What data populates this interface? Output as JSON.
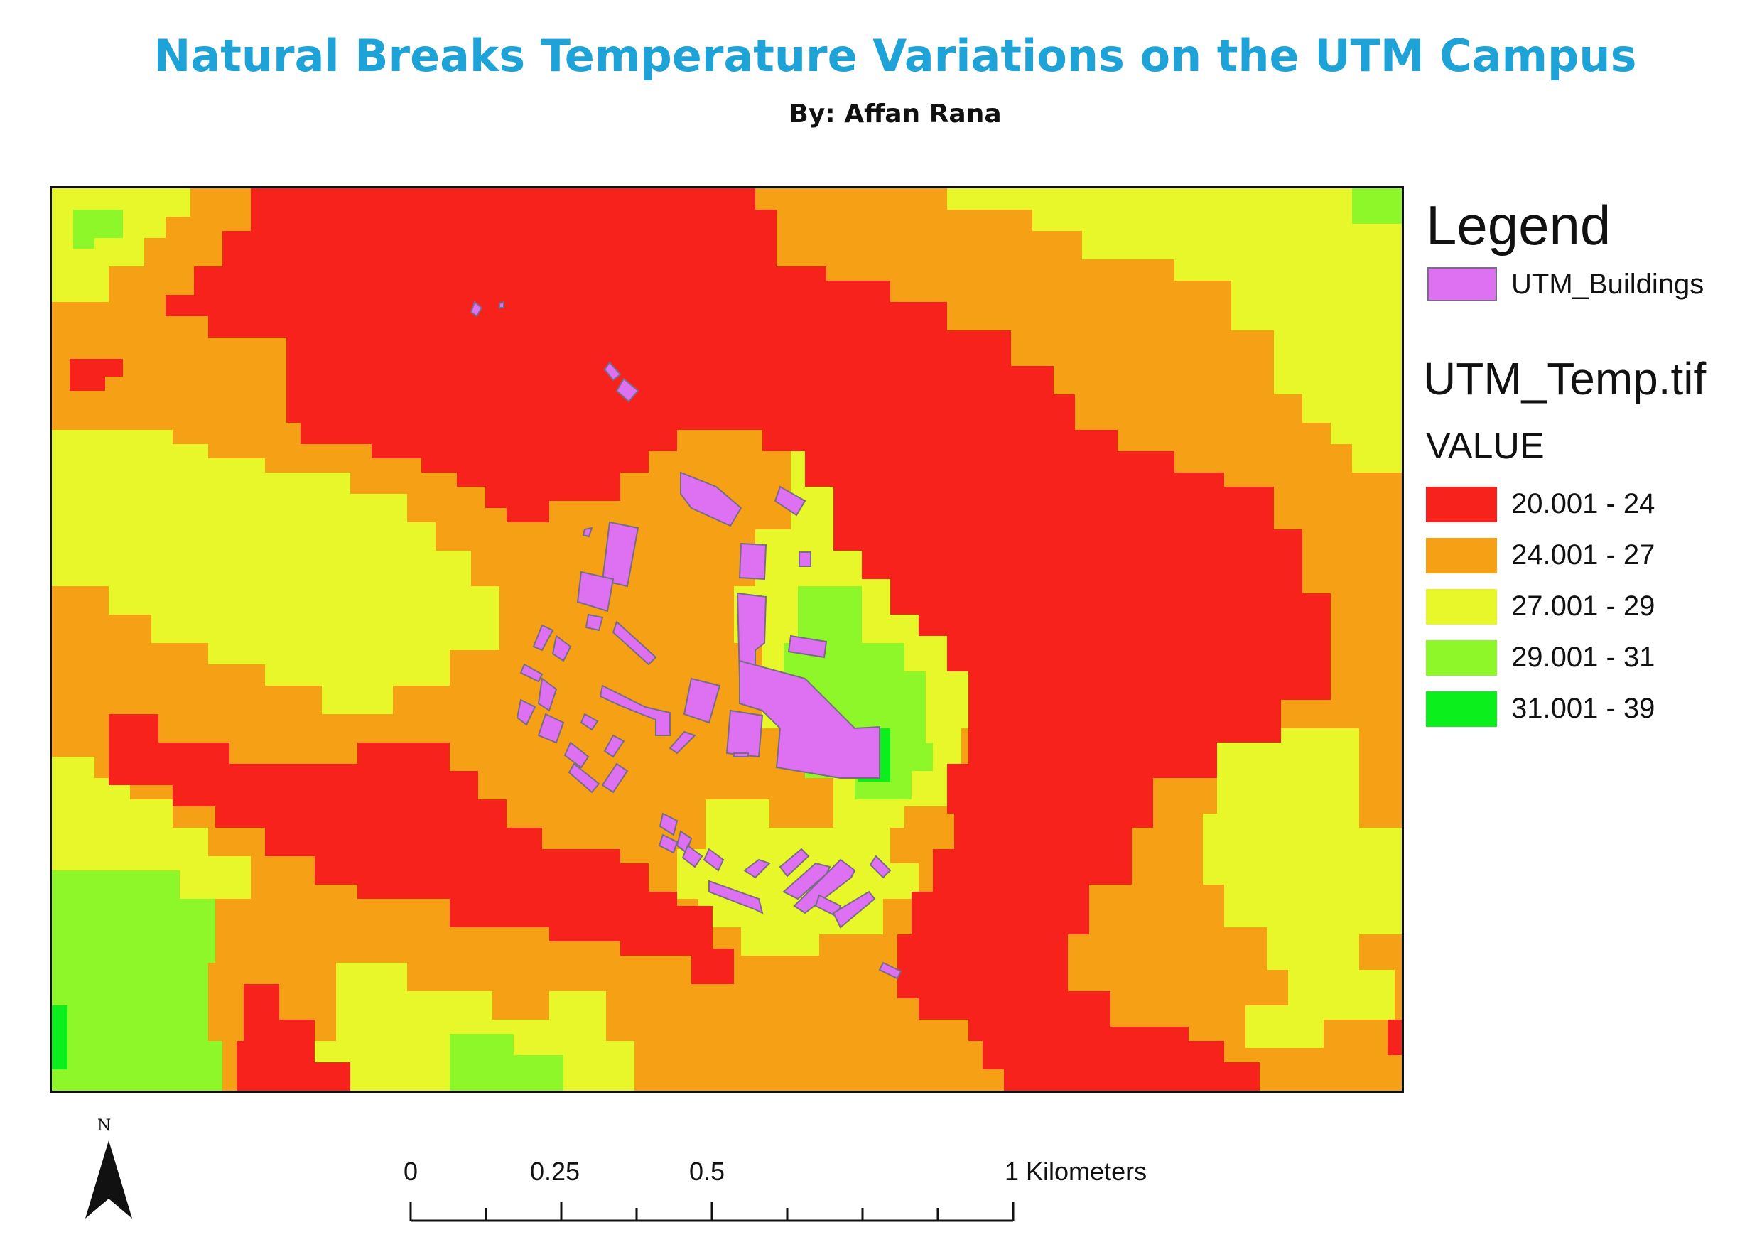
{
  "map": {
    "title": "Natural Breaks Temperature Variations on the UTM Campus",
    "subtitle": "By: Affan Rana"
  },
  "legend": {
    "title": "Legend",
    "buildings_label": "UTM_Buildings",
    "buildings_color": "#dd71f2",
    "raster_layer": "UTM_Temp.tif",
    "field": "VALUE",
    "classes": [
      {
        "label": "20.001 - 24",
        "color": "#f8221c"
      },
      {
        "label": "24.001 - 27",
        "color": "#f5a015"
      },
      {
        "label": "27.001 - 29",
        "color": "#e7f72a"
      },
      {
        "label": "29.001 - 31",
        "color": "#8ef72a"
      },
      {
        "label": "31.001 - 39",
        "color": "#0bf01c"
      }
    ]
  },
  "north_arrow": {
    "label": "N",
    "icon": "north-arrow-icon"
  },
  "scale_bar": {
    "labels": [
      "0",
      "0.25",
      "0.5",
      "1 Kilometers"
    ],
    "values": [
      0,
      0.25,
      0.5,
      1
    ]
  }
}
